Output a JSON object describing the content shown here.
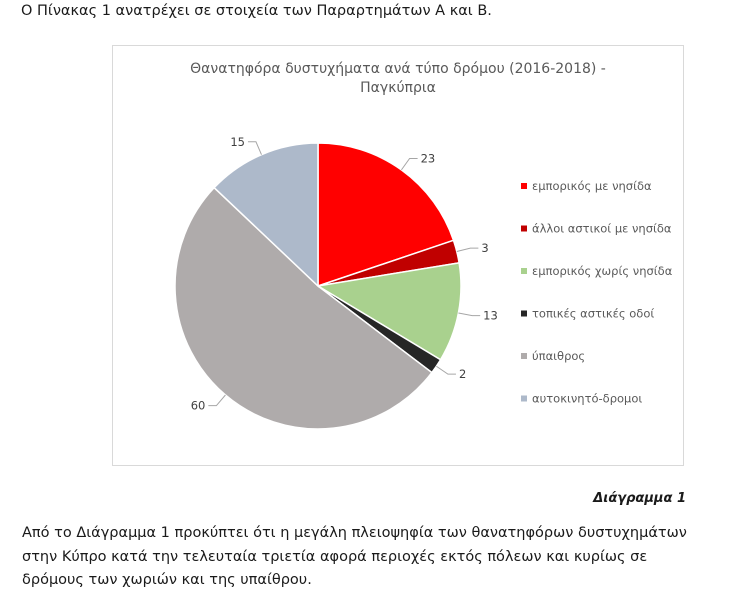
{
  "intro_text": "Ο Πίνακας 1 ανατρέχει σε στοιχεία των Παραρτημάτων Α και Β.",
  "caption": "Διάγραμμα 1",
  "body_text": "Από το Διάγραμμα 1 προκύπτει ότι η μεγάλη πλειοψηφία των θανατηφόρων δυστυχημάτων στην Κύπρο κατά την τελευταία τριετία αφορά περιοχές εκτός πόλεων και κυρίως σε δρόμους των χωριών και της υπαίθρου.",
  "chart_data": {
    "type": "pie",
    "title": "Θανατηφόρα δυστυχήματα ανά τύπο δρόμου (2016-2018) - Παγκύπρια",
    "title_line1": "Θανατηφόρα δυστυχήματα ανά τύπο δρόμου (2016-2018) -",
    "title_line2": "Παγκύπρια",
    "legend_position": "right",
    "slices": [
      {
        "label": "εμπορικός με νησίδα",
        "value": 23,
        "color": "#ff0000"
      },
      {
        "label": "άλλοι αστικοί με νησίδα",
        "value": 3,
        "color": "#c00000"
      },
      {
        "label": "εμπορικός χωρίς νησίδα",
        "value": 13,
        "color": "#a9d18e"
      },
      {
        "label": "τοπικές αστικές οδοί",
        "value": 2,
        "color": "#262626"
      },
      {
        "label": "ύπαιθρος",
        "value": 60,
        "color": "#afabab"
      },
      {
        "label": "αυτοκινητό-δρομοι",
        "value": 15,
        "color": "#adb9ca"
      }
    ]
  }
}
